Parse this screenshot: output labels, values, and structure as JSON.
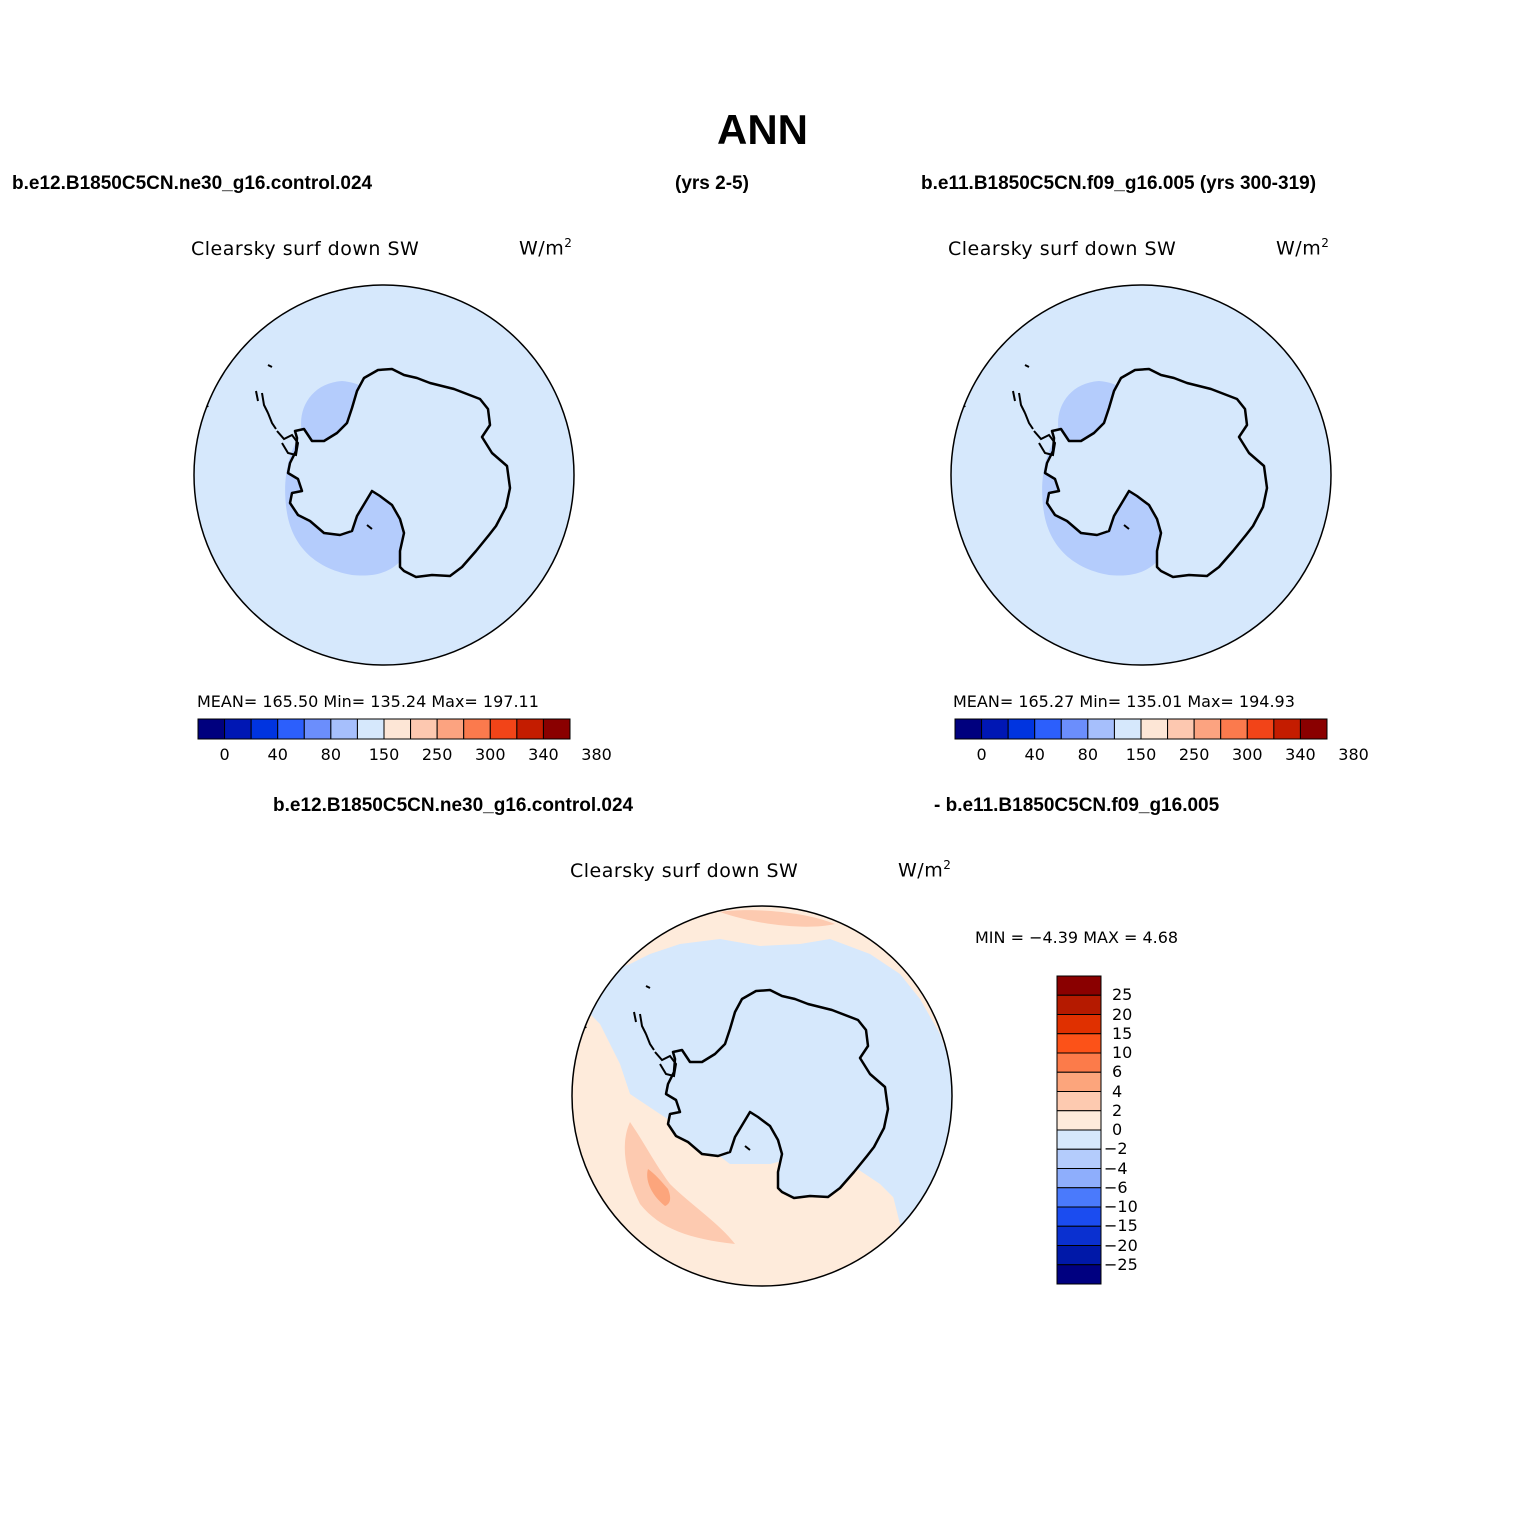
{
  "title": "ANN",
  "header": {
    "case1": "b.e12.B1850C5CN.ne30_g16.control.024",
    "case1_years": "(yrs 2-5)",
    "case2": "b.e11.B1850C5CN.f09_g16.005 (yrs 300-319)",
    "diff_left": "b.e12.B1850C5CN.ne30_g16.control.024",
    "diff_right": "- b.e11.B1850C5CN.f09_g16.005"
  },
  "variable": "Clearsky surf down SW",
  "units": "W/m",
  "units_sup": "2",
  "panel1": {
    "stats": "MEAN=  165.50   Min=  135.24   Max=  197.11"
  },
  "panel2": {
    "stats": "MEAN=  165.27   Min=  135.01   Max=  194.93"
  },
  "panel3": {
    "stats": "MIN =   −4.39  MAX =    4.68"
  },
  "colorbar_abs": {
    "labels": [
      "0",
      "40",
      "80",
      "150",
      "250",
      "300",
      "340",
      "380"
    ],
    "colors": [
      "#00007e",
      "#0017b4",
      "#0034e0",
      "#2c5ffc",
      "#6b8efc",
      "#a6bffc",
      "#d6e8fc",
      "#fde6d6",
      "#fdc8b0",
      "#fca380",
      "#fb7a4d",
      "#f24418",
      "#c41c00",
      "#8a0000"
    ]
  },
  "colorbar_diff": {
    "labels": [
      "25",
      "20",
      "15",
      "10",
      "6",
      "4",
      "2",
      "0",
      "−2",
      "−4",
      "−6",
      "−10",
      "−15",
      "−20",
      "−25"
    ],
    "colors": [
      "#8a0000",
      "#b51a00",
      "#e03000",
      "#fc5218",
      "#fc7b4a",
      "#fca57c",
      "#fdcab0",
      "#feebdb",
      "#d6e8fc",
      "#b4ccfc",
      "#8eaefc",
      "#4a7afc",
      "#1b4cf0",
      "#0a30d0",
      "#0018a8",
      "#000080"
    ]
  },
  "map_colors": {
    "ocean_abs": "#d6e8fc",
    "interior_abs": "#b4ccfc",
    "diff_pos": "#feebdb",
    "diff_pos2": "#fdcab0",
    "diff_pos3": "#fca57c",
    "diff_neg": "#d6e8fc"
  }
}
